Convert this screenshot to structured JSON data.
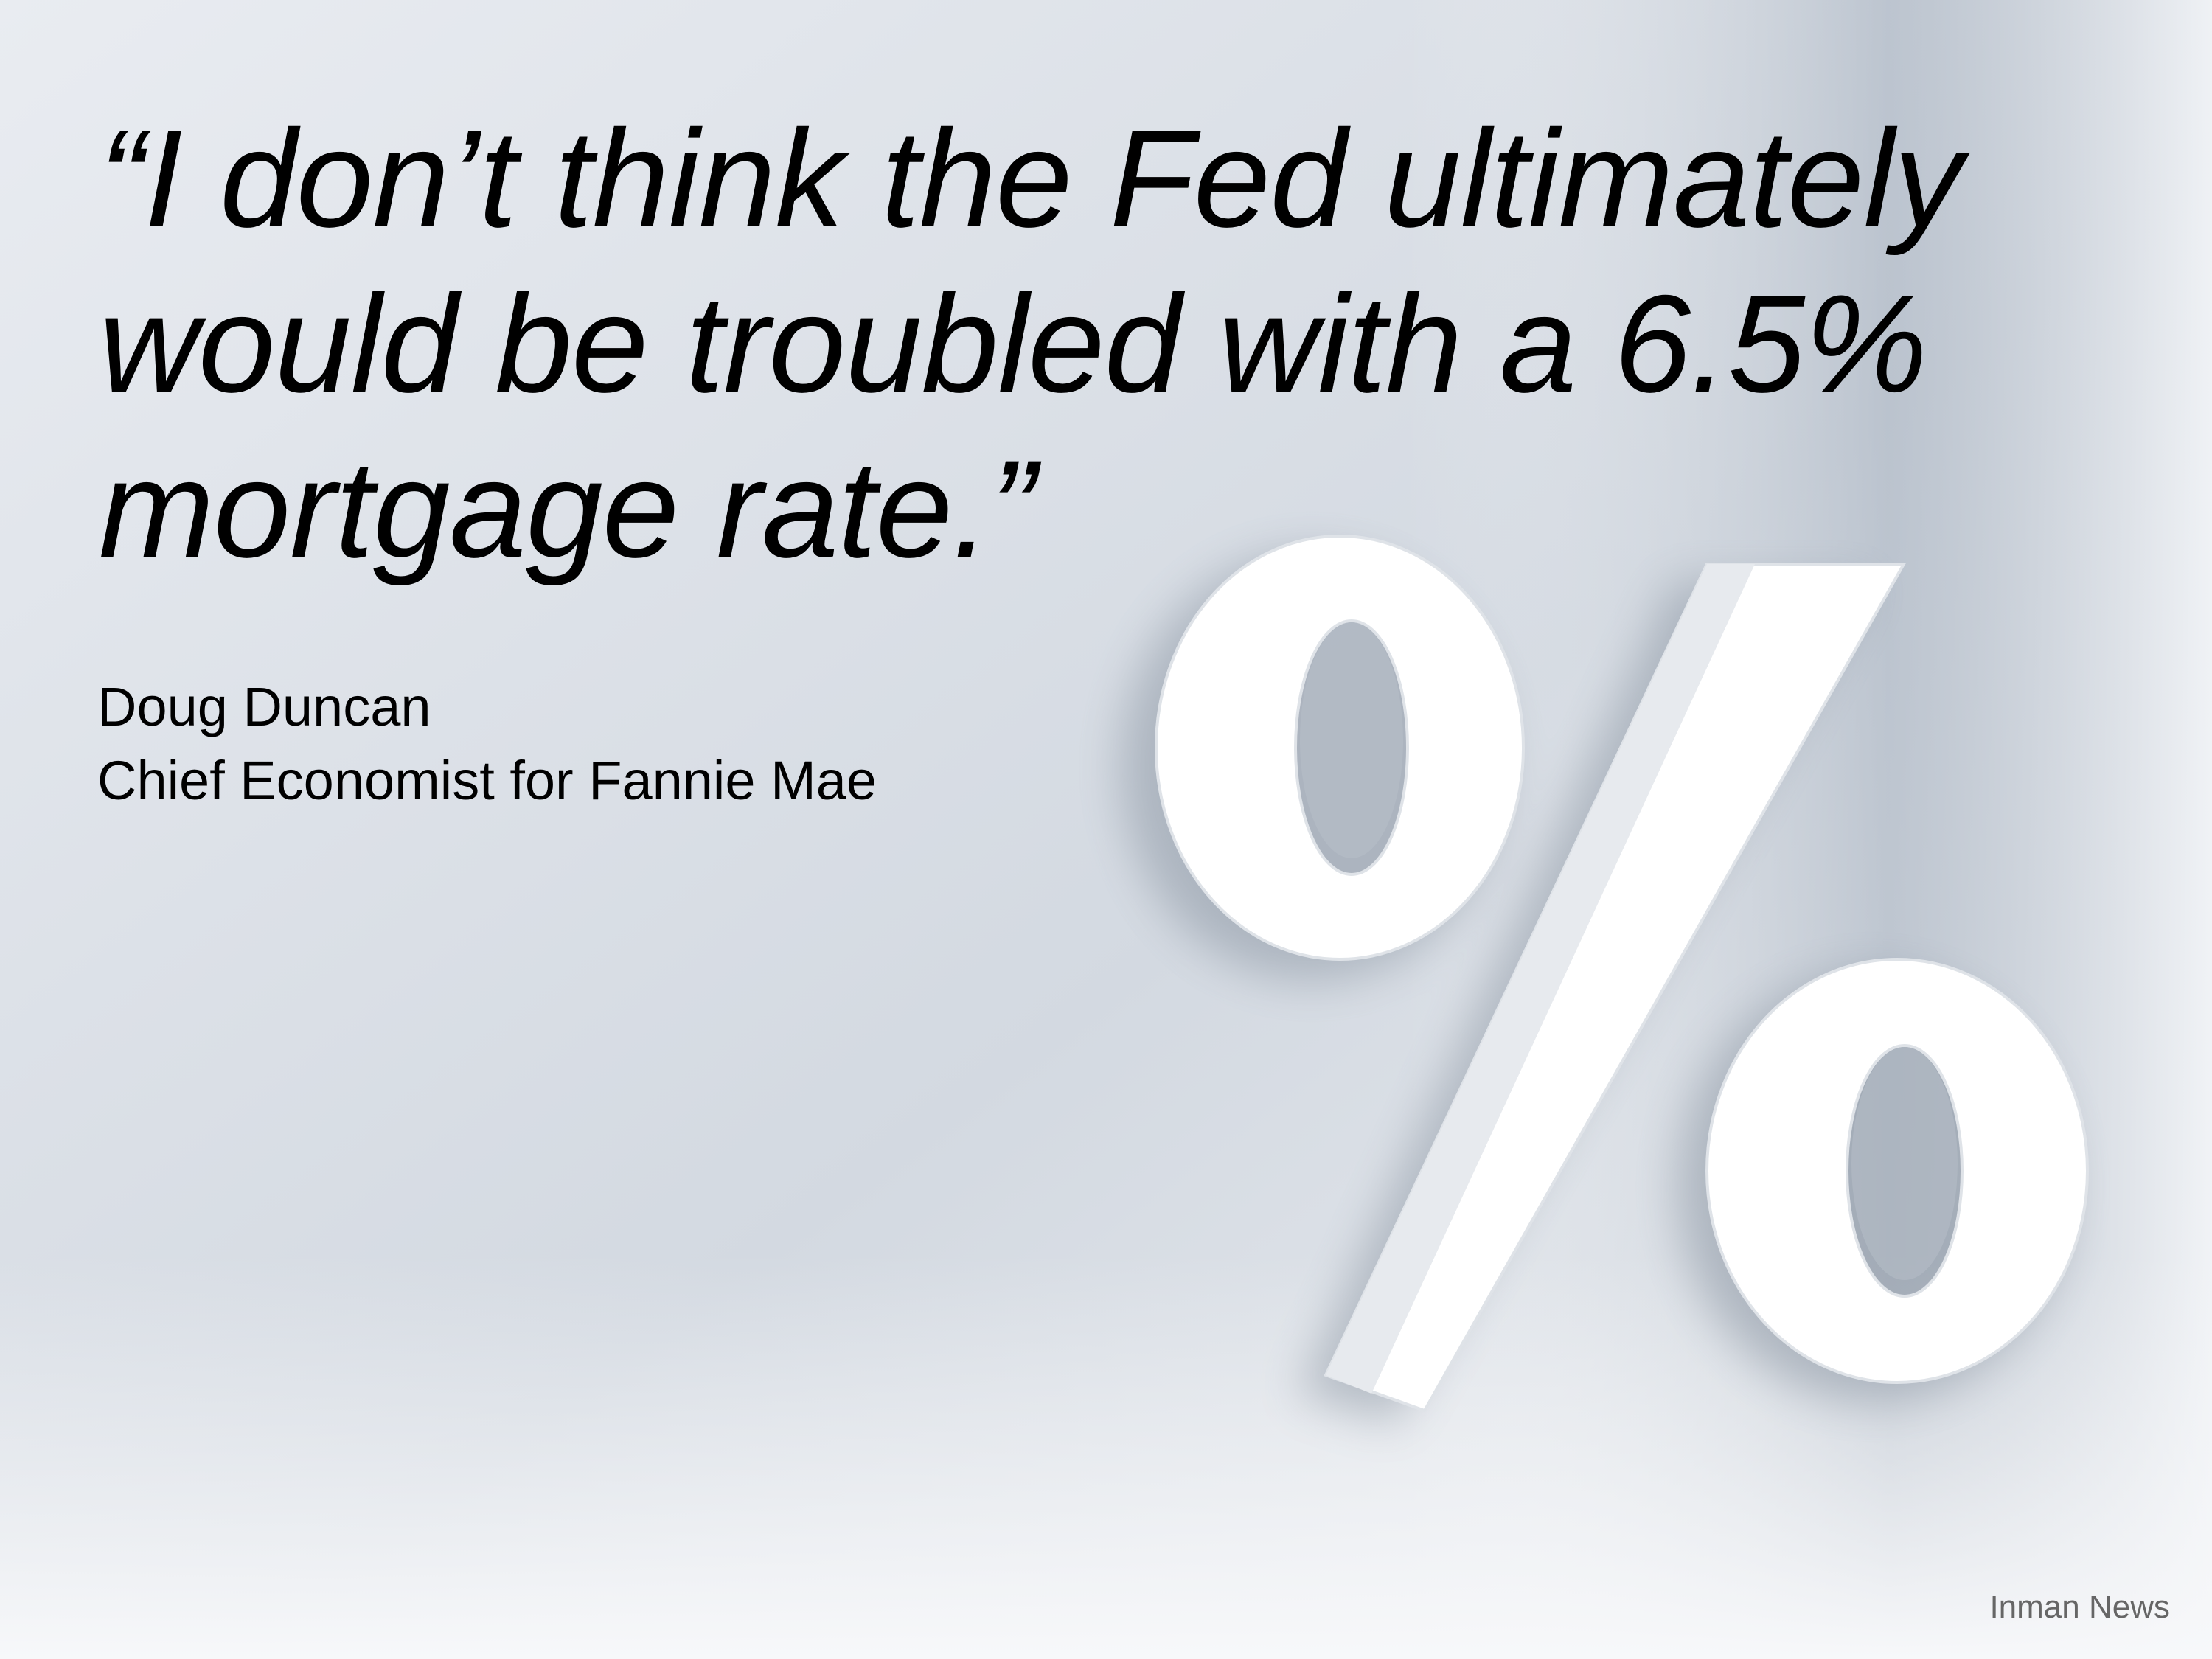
{
  "quote": {
    "lines": [
      "“I don’t think the Fed ultimately",
      "would be troubled with a 6.5%",
      "mortgage rate.”"
    ]
  },
  "attribution": {
    "name": "Doug Duncan",
    "title": "Chief Economist for Fannie Mae"
  },
  "source": "Inman News"
}
